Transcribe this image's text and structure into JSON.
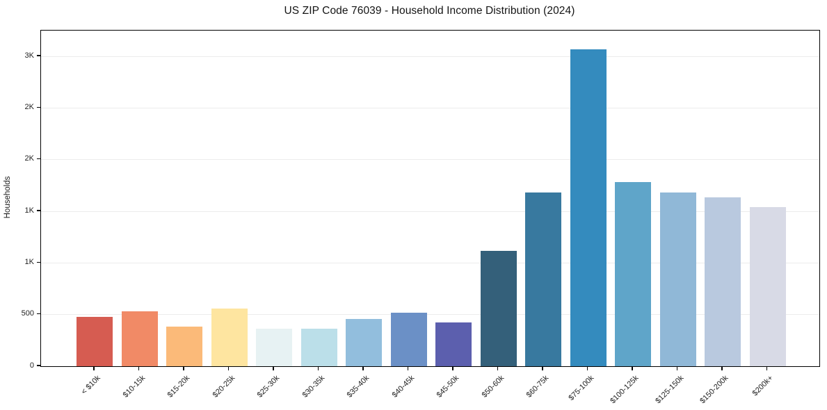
{
  "figure": {
    "background": "#ffffff"
  },
  "chart_data": {
    "type": "bar",
    "title": "US ZIP Code 76039 - Household Income Distribution (2024)",
    "xlabel": "",
    "ylabel": "Households",
    "categories": [
      "< $10k",
      "$10-15k",
      "$15-20k",
      "$20-25k",
      "$25-30k",
      "$30-35k",
      "$35-40k",
      "$40-45k",
      "$45-50k",
      "$50-60k",
      "$60-75k",
      "$75-100k",
      "$100-125k",
      "$125-150k",
      "$150-200k",
      "$200k+"
    ],
    "values": [
      480,
      530,
      385,
      560,
      365,
      365,
      455,
      520,
      425,
      1120,
      1685,
      3070,
      1780,
      1685,
      1635,
      1540
    ],
    "bar_colors": [
      "#d65c51",
      "#f18a66",
      "#fbba79",
      "#fee5a0",
      "#e7f2f3",
      "#bbdfe9",
      "#92bedd",
      "#6b90c6",
      "#5c5fae",
      "#34607a",
      "#38799f",
      "#348bbe",
      "#5fa5c9",
      "#90b8d7",
      "#b9c9df",
      "#d8dae6"
    ],
    "ylim": [
      0,
      3250
    ],
    "y_ticks": [
      {
        "value": 0,
        "label": "0"
      },
      {
        "value": 500,
        "label": "500"
      },
      {
        "value": 1000,
        "label": "1K"
      },
      {
        "value": 1500,
        "label": "1K"
      },
      {
        "value": 2000,
        "label": "2K"
      },
      {
        "value": 2500,
        "label": "2K"
      },
      {
        "value": 3000,
        "label": "3K"
      }
    ],
    "grid": "horizontal",
    "grid_color": "#ececec",
    "legend": "none",
    "x_tick_rotation_deg": 45
  }
}
